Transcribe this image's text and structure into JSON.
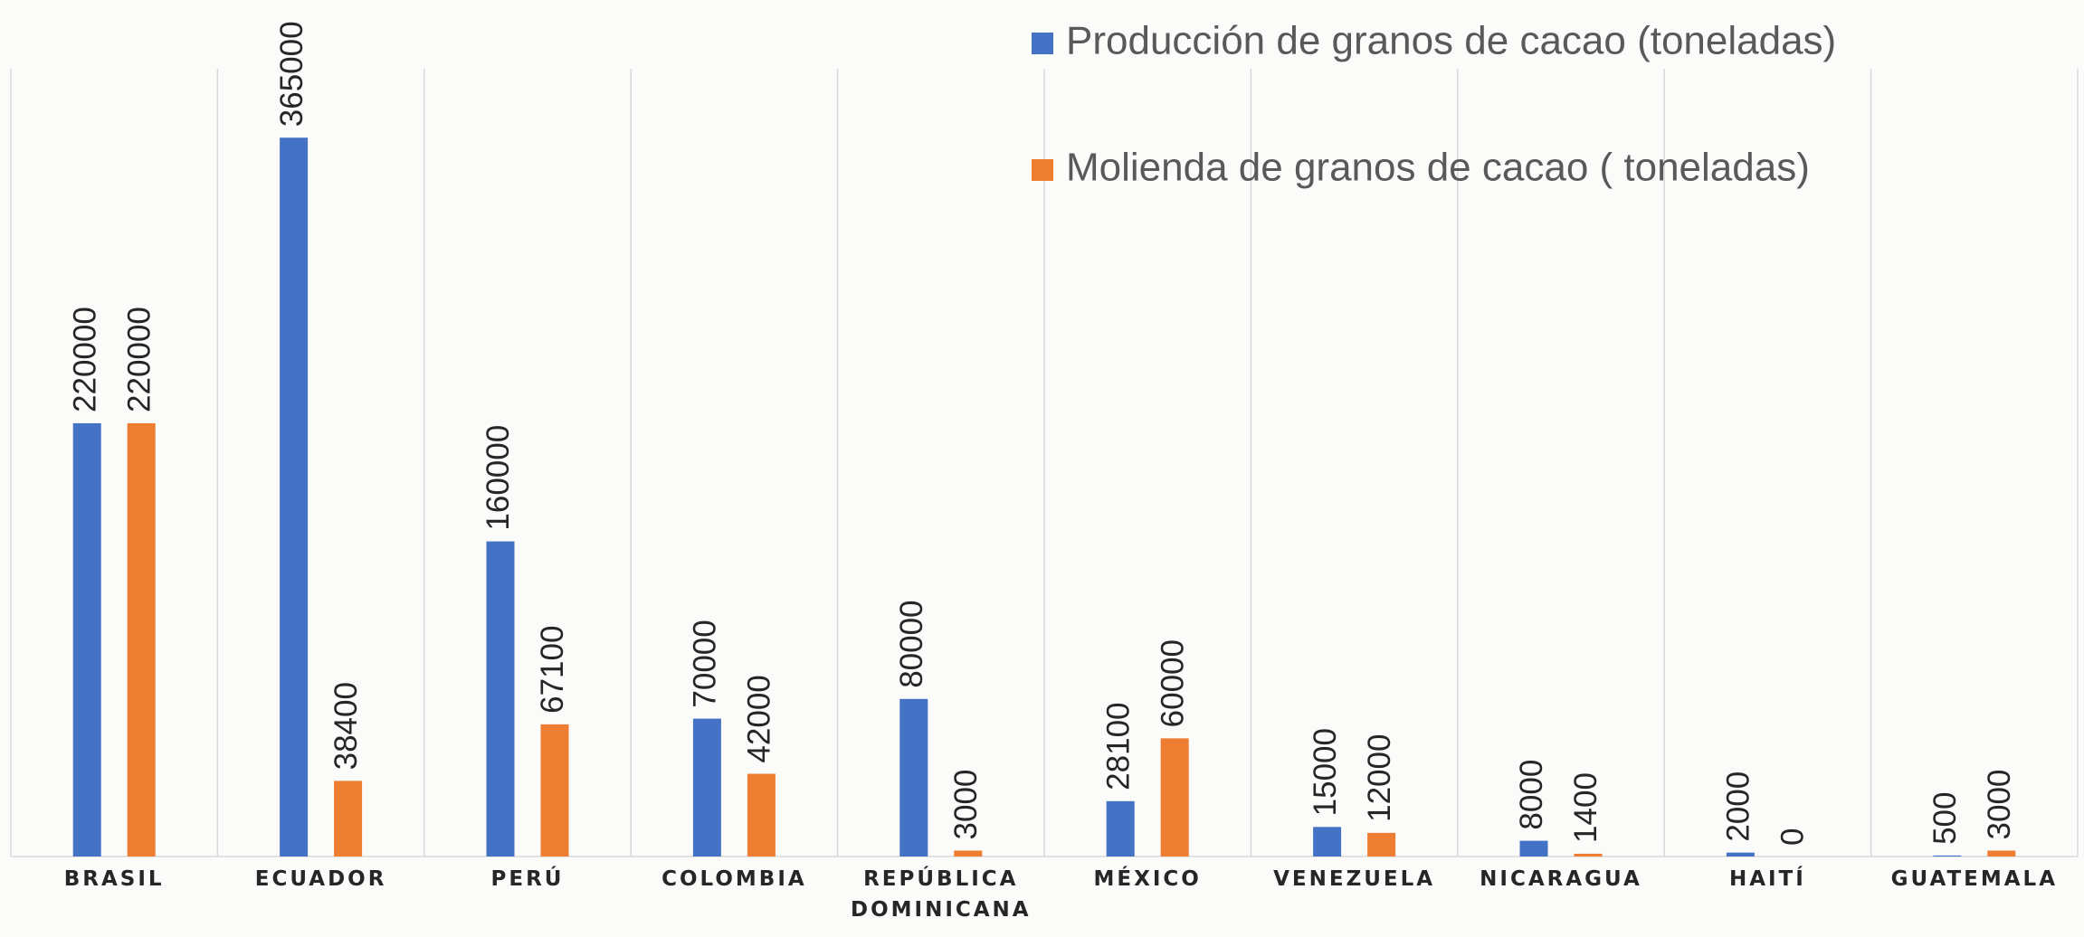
{
  "chart_data": {
    "type": "bar",
    "categories": [
      "BRASIL",
      "ECUADOR",
      "PERÚ",
      "COLOMBIA",
      "REPÚBLICA DOMINICANA",
      "MÉXICO",
      "VENEZUELA",
      "NICARAGUA",
      "HAITÍ",
      "GUATEMALA"
    ],
    "series": [
      {
        "name": "Producción de granos de cacao (toneladas)",
        "color": "#4472c4",
        "values": [
          220000,
          365000,
          160000,
          70000,
          80000,
          28100,
          15000,
          8000,
          2000,
          500
        ]
      },
      {
        "name": "Molienda de granos de cacao ( toneladas)",
        "color": "#ed7d31",
        "values": [
          220000,
          38400,
          67100,
          42000,
          3000,
          60000,
          12000,
          1400,
          0,
          3000
        ]
      }
    ],
    "ylim": [
      0,
      400000
    ],
    "grid": true
  }
}
